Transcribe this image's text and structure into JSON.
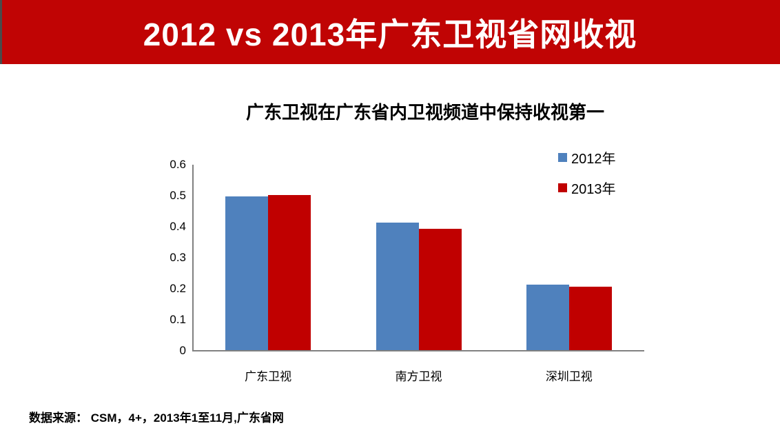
{
  "banner": {
    "title": "2012 vs 2013年广东卫视省网收视",
    "bg_color": "#c00404",
    "text_color": "#ffffff"
  },
  "chart_data": {
    "type": "bar",
    "title": "广东卫视在广东省内卫视频道中保持收视第一",
    "categories": [
      "广东卫视",
      "南方卫视",
      "深圳卫视"
    ],
    "series": [
      {
        "name": "2012年",
        "color": "#4f81bd",
        "values": [
          0.495,
          0.41,
          0.21
        ]
      },
      {
        "name": "2013年",
        "color": "#c00000",
        "values": [
          0.5,
          0.39,
          0.205
        ]
      }
    ],
    "xlabel": "",
    "ylabel": "",
    "ylim": [
      0,
      0.6
    ],
    "ytick_labels": [
      "0",
      "0.1",
      "0.2",
      "0.3",
      "0.4",
      "0.5",
      "0.6"
    ],
    "grid": false,
    "legend_position": "top-right",
    "axis_color": "#808080"
  },
  "footer": {
    "source_text": "数据来源： CSM，4+，2013年1至11月,广东省网"
  }
}
